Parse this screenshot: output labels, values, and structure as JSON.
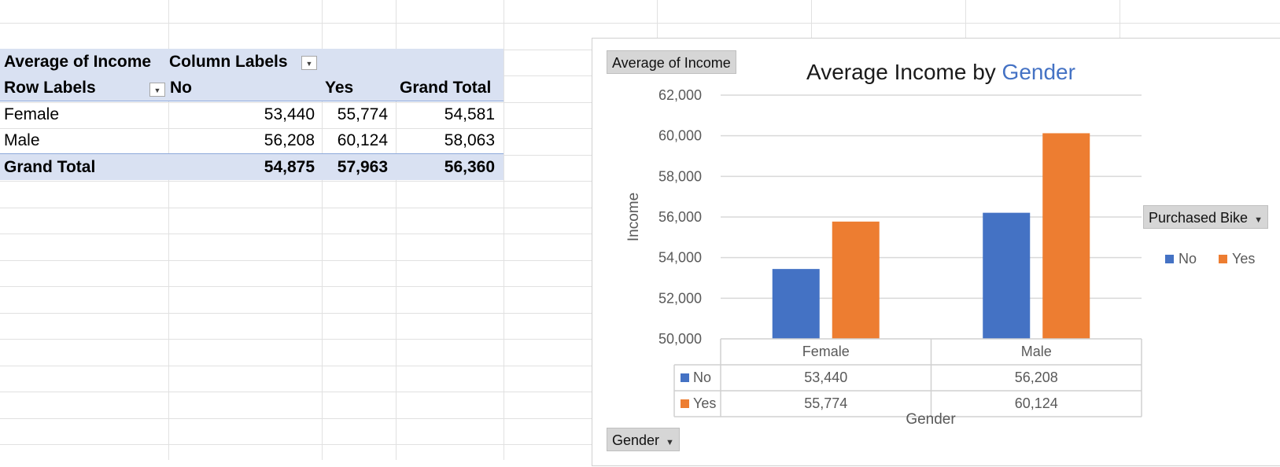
{
  "pivot": {
    "value_header": "Average of Income",
    "column_labels": "Column Labels",
    "row_labels": "Row Labels",
    "columns": [
      "No",
      "Yes",
      "Grand Total"
    ],
    "rows": [
      {
        "label": "Female",
        "values": [
          "53,440",
          "55,774",
          "54,581"
        ]
      },
      {
        "label": "Male",
        "values": [
          "56,208",
          "60,124",
          "58,063"
        ]
      }
    ],
    "grand_total": {
      "label": "Grand Total",
      "values": [
        "54,875",
        "57,963",
        "56,360"
      ]
    }
  },
  "chart": {
    "value_field_button": "Average of Income",
    "axis_field_button": "Gender",
    "legend_field_button": "Purchased Bike",
    "title_prefix": "Average Income by ",
    "title_highlight": "Gender",
    "title_highlight_color": "#4472c4"
  },
  "chart_data": {
    "type": "bar",
    "title": "Average Income by Gender",
    "xlabel": "Gender",
    "ylabel": "Income",
    "categories": [
      "Female",
      "Male"
    ],
    "series": [
      {
        "name": "No",
        "color": "#4472c4",
        "values": [
          53440,
          56208
        ],
        "labels": [
          "53,440",
          "56,208"
        ]
      },
      {
        "name": "Yes",
        "color": "#ed7d31",
        "values": [
          55774,
          60124
        ],
        "labels": [
          "55,774",
          "60,124"
        ]
      }
    ],
    "ylim": [
      50000,
      62000
    ],
    "yticks": [
      "50,000",
      "52,000",
      "54,000",
      "56,000",
      "58,000",
      "60,000",
      "62,000"
    ],
    "grid": true,
    "legend": "right",
    "data_table": true
  }
}
